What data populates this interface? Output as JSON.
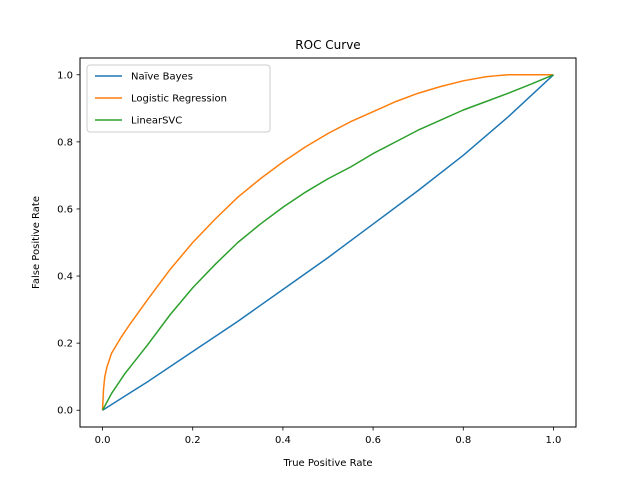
{
  "chart_data": {
    "type": "line",
    "title": "ROC Curve",
    "xlabel": "True Positive Rate",
    "ylabel": "False Positive Rate",
    "xlim": [
      -0.05,
      1.05
    ],
    "ylim": [
      -0.05,
      1.05
    ],
    "xticks": [
      "0.0",
      "0.2",
      "0.4",
      "0.6",
      "0.8",
      "1.0"
    ],
    "yticks": [
      "0.0",
      "0.2",
      "0.4",
      "0.6",
      "0.8",
      "1.0"
    ],
    "grid": false,
    "legend_position": "top-left",
    "series": [
      {
        "name": "Naïve Bayes",
        "color": "#1f77b4",
        "x": [
          0,
          0.1,
          0.2,
          0.3,
          0.4,
          0.5,
          0.6,
          0.7,
          0.8,
          0.9,
          1.0
        ],
        "y": [
          0,
          0.085,
          0.175,
          0.265,
          0.36,
          0.455,
          0.555,
          0.655,
          0.76,
          0.875,
          1.0
        ]
      },
      {
        "name": "Logistic Regression",
        "color": "#ff7f0e",
        "x": [
          0,
          0.002,
          0.005,
          0.01,
          0.02,
          0.04,
          0.06,
          0.1,
          0.15,
          0.2,
          0.25,
          0.3,
          0.35,
          0.4,
          0.45,
          0.5,
          0.55,
          0.6,
          0.65,
          0.7,
          0.75,
          0.8,
          0.85,
          0.88,
          0.9,
          0.95,
          1.0
        ],
        "y": [
          0,
          0.06,
          0.1,
          0.13,
          0.17,
          0.215,
          0.255,
          0.33,
          0.42,
          0.5,
          0.57,
          0.635,
          0.69,
          0.74,
          0.785,
          0.825,
          0.86,
          0.89,
          0.92,
          0.945,
          0.965,
          0.982,
          0.994,
          0.998,
          1.0,
          1.0,
          1.0
        ]
      },
      {
        "name": "LinearSVC",
        "color": "#2ca02c",
        "x": [
          0,
          0.02,
          0.05,
          0.1,
          0.15,
          0.2,
          0.25,
          0.3,
          0.35,
          0.4,
          0.45,
          0.5,
          0.55,
          0.6,
          0.65,
          0.7,
          0.75,
          0.8,
          0.85,
          0.9,
          0.95,
          1.0
        ],
        "y": [
          0,
          0.05,
          0.11,
          0.195,
          0.285,
          0.365,
          0.435,
          0.5,
          0.555,
          0.605,
          0.65,
          0.69,
          0.725,
          0.765,
          0.8,
          0.835,
          0.865,
          0.895,
          0.92,
          0.945,
          0.972,
          1.0
        ]
      }
    ]
  }
}
